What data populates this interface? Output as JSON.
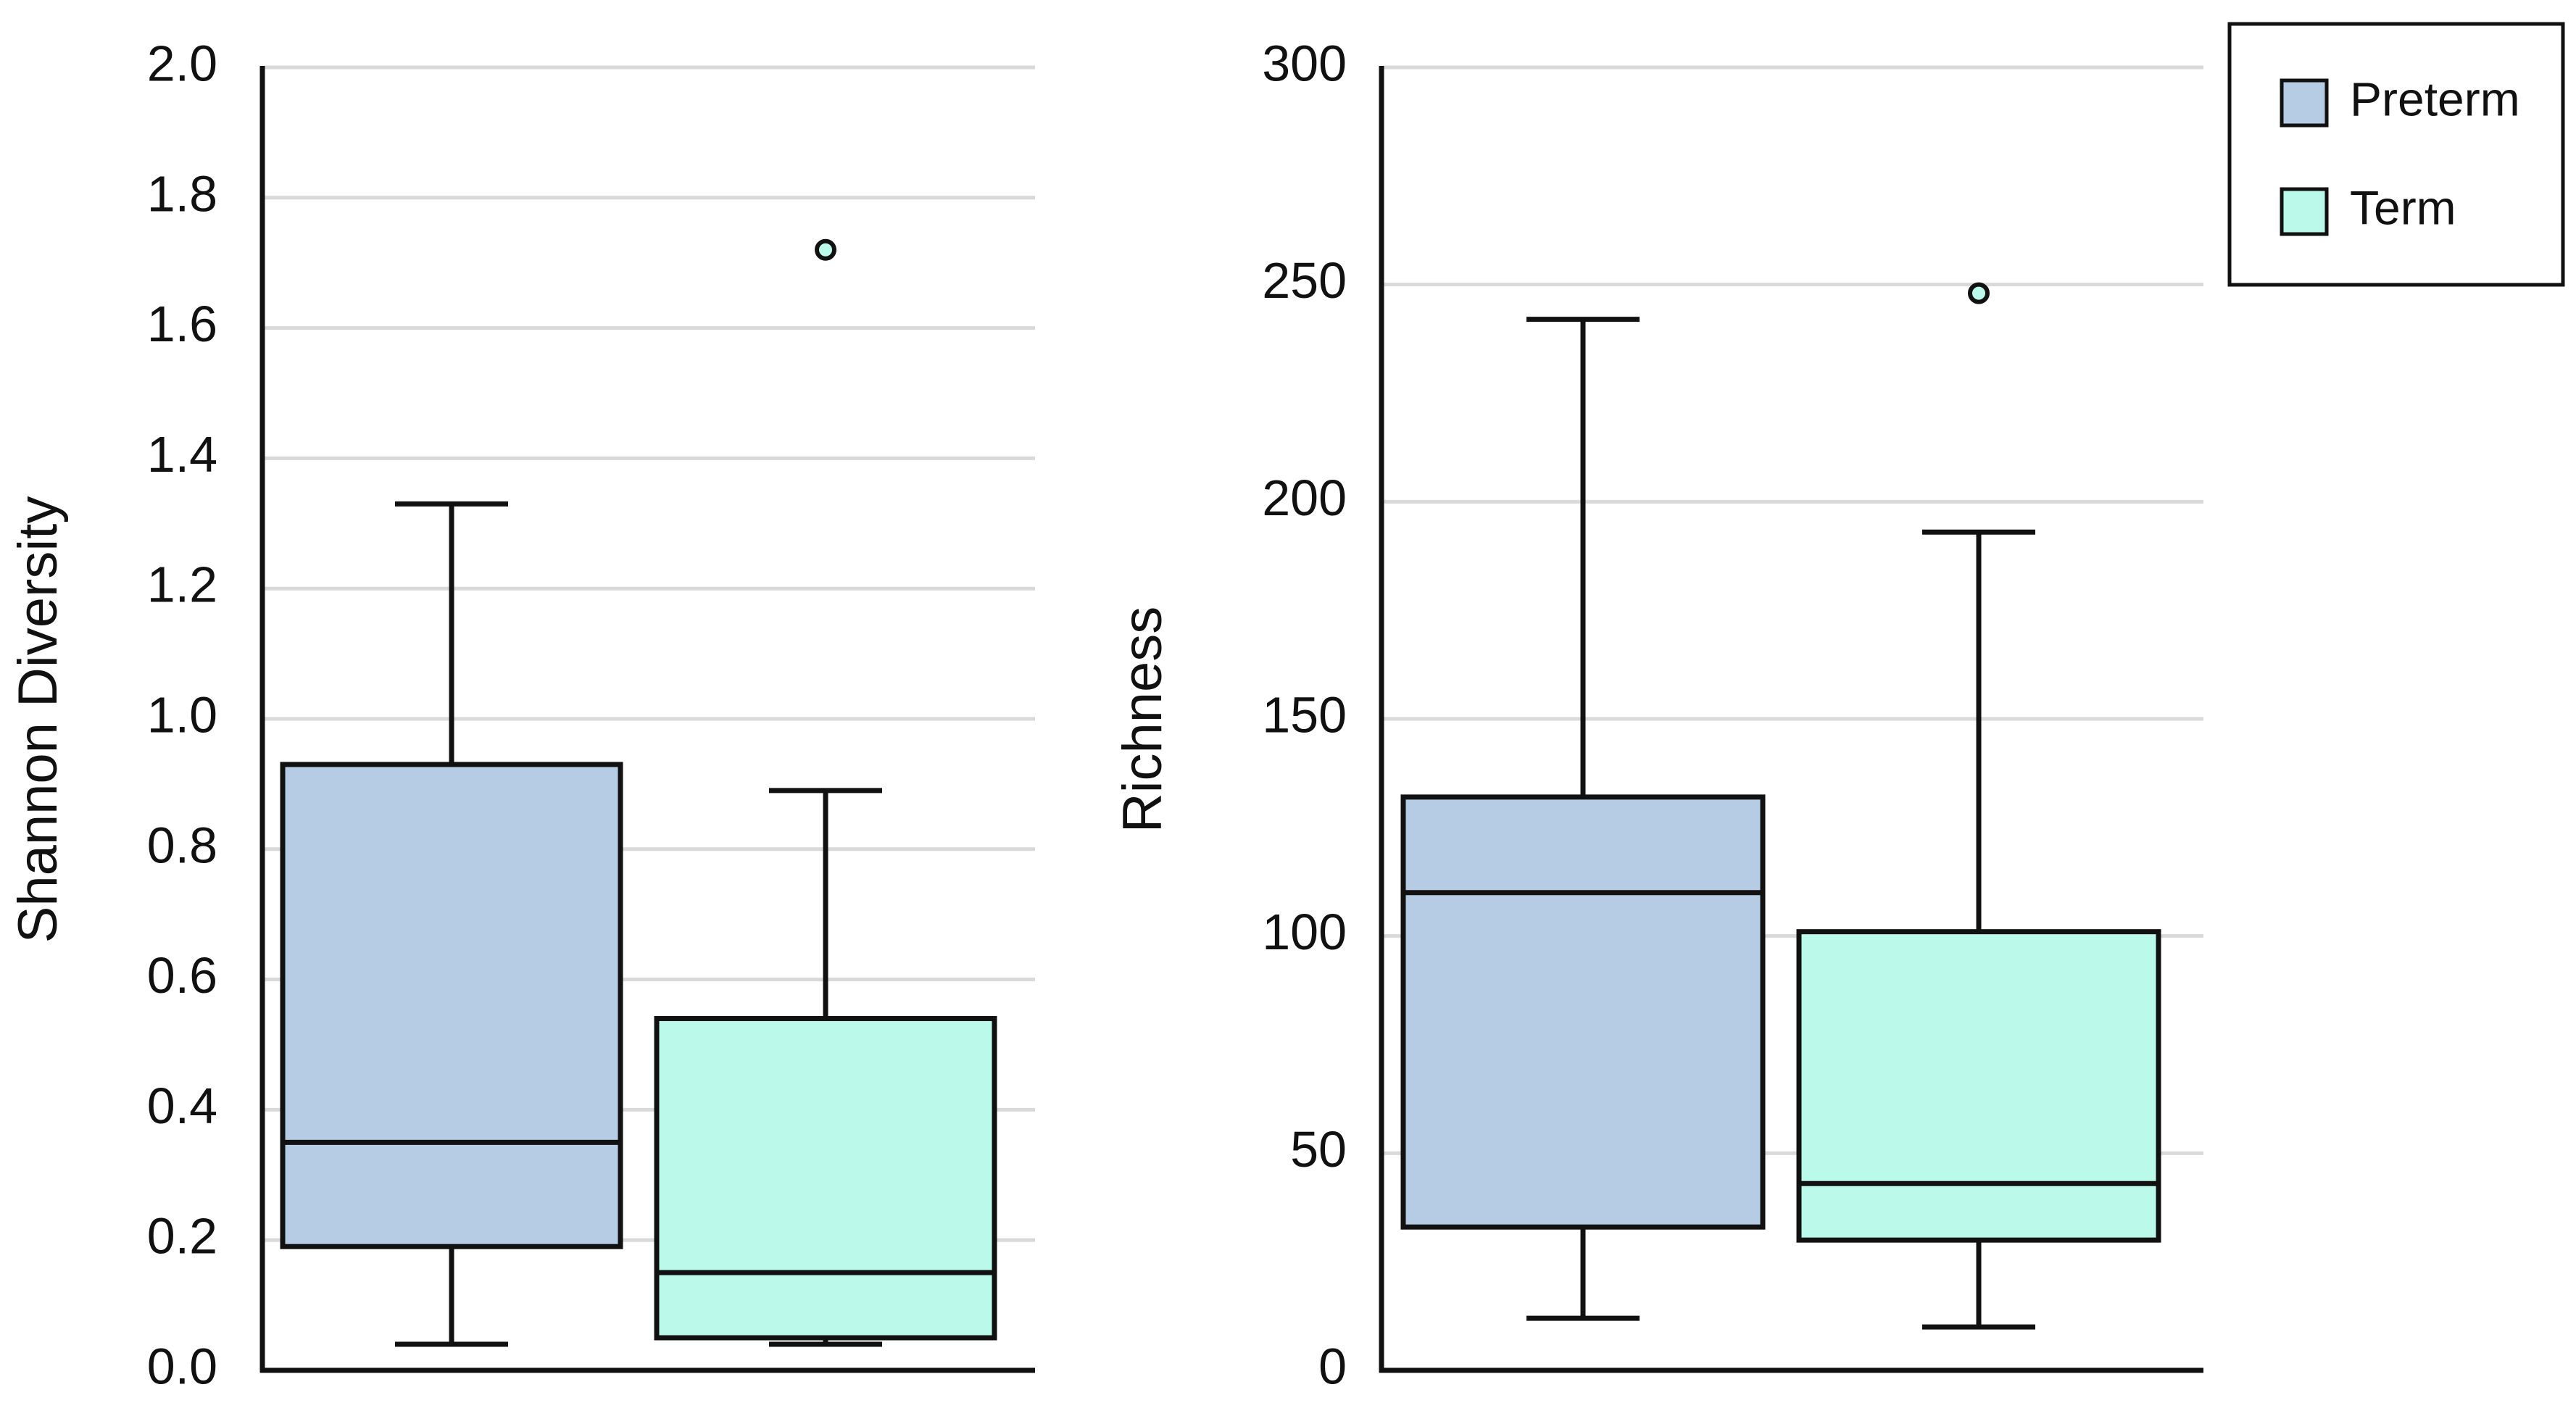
{
  "chart_data": [
    {
      "type": "box",
      "title": "",
      "xlabel": "",
      "ylabel": "Shannon Diversity",
      "ylim": [
        0.0,
        2.0
      ],
      "yticks": [
        0.0,
        0.2,
        0.4,
        0.6,
        0.8,
        1.0,
        1.2,
        1.4,
        1.6,
        1.8,
        2.0
      ],
      "ytick_labels": [
        "0.0",
        "0.2",
        "0.4",
        "0.6",
        "0.8",
        "1.0",
        "1.2",
        "1.4",
        "1.6",
        "1.8",
        "2.0"
      ],
      "grid": true,
      "series": [
        {
          "name": "Preterm",
          "min": 0.04,
          "q1": 0.19,
          "median": 0.35,
          "q3": 0.93,
          "max": 1.33,
          "outliers": []
        },
        {
          "name": "Term",
          "min": 0.04,
          "q1": 0.05,
          "median": 0.15,
          "q3": 0.54,
          "max": 0.89,
          "outliers": [
            1.72
          ]
        }
      ]
    },
    {
      "type": "box",
      "title": "",
      "xlabel": "",
      "ylabel": "Richness",
      "ylim": [
        0,
        300
      ],
      "yticks": [
        0,
        50,
        100,
        150,
        200,
        250,
        300
      ],
      "ytick_labels": [
        "0",
        "50",
        "100",
        "150",
        "200",
        "250",
        "300"
      ],
      "grid": true,
      "series": [
        {
          "name": "Preterm",
          "min": 12,
          "q1": 33,
          "median": 110,
          "q3": 132,
          "max": 242,
          "outliers": []
        },
        {
          "name": "Term",
          "min": 10,
          "q1": 30,
          "median": 43,
          "q3": 101,
          "max": 193,
          "outliers": [
            248
          ]
        }
      ]
    }
  ],
  "legend": {
    "position": "top-right",
    "entries": [
      {
        "label": "Preterm",
        "color": "#b6cce4"
      },
      {
        "label": "Term",
        "color": "#bbf9ea"
      }
    ]
  },
  "colors": {
    "preterm": "#b6cce4",
    "term": "#bbf9ea",
    "stroke": "#111111",
    "grid": "#d9d9d9"
  }
}
